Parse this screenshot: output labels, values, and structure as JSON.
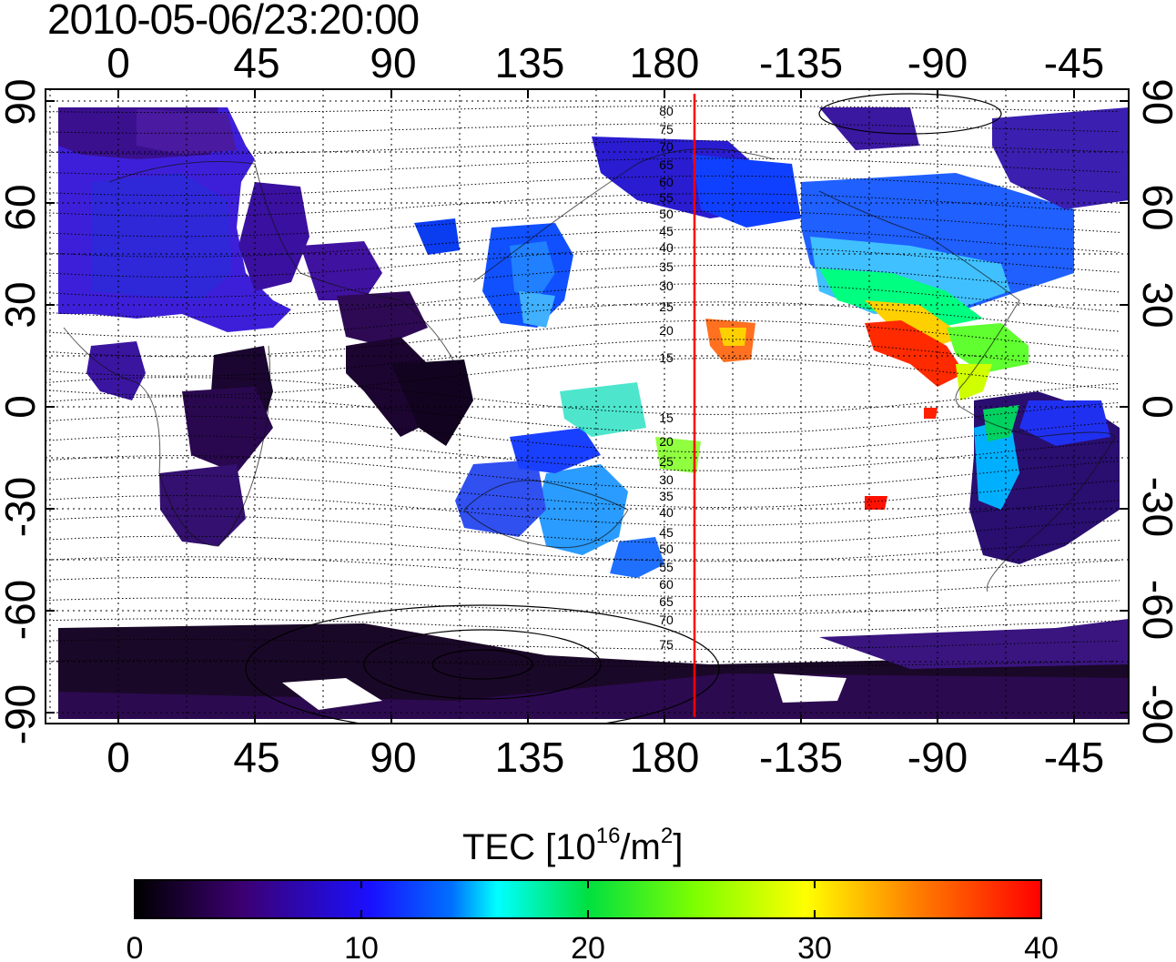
{
  "title": "2010-05-06/23:20:00",
  "map": {
    "lon_ticks": [
      "0",
      "45",
      "90",
      "135",
      "180",
      "-135",
      "-90",
      "-45"
    ],
    "lat_ticks": [
      "90",
      "60",
      "30",
      "0",
      "-30",
      "-60",
      "-90"
    ],
    "contour_labels": [
      "80",
      "75",
      "70",
      "65",
      "60",
      "55",
      "50",
      "45",
      "40",
      "35",
      "30",
      "25",
      "20",
      "15",
      "15",
      "20",
      "25",
      "30",
      "35",
      "40",
      "45",
      "50",
      "55",
      "60",
      "65",
      "70",
      "75"
    ],
    "terminator_line": {
      "lon": 190,
      "color": "#ff0000"
    }
  },
  "colorbar": {
    "title_prefix": "TEC  [10",
    "title_exp1": "16",
    "title_mid": "/m",
    "title_exp2": "2",
    "title_suffix": "]",
    "ticks": [
      "0",
      "10",
      "20",
      "30",
      "40"
    ],
    "range": [
      0,
      40
    ],
    "colors": [
      "#000000",
      "#3c0073",
      "#0000ff",
      "#00ffff",
      "#00ff00",
      "#ffff00",
      "#ff8000",
      "#ff0000"
    ]
  }
}
